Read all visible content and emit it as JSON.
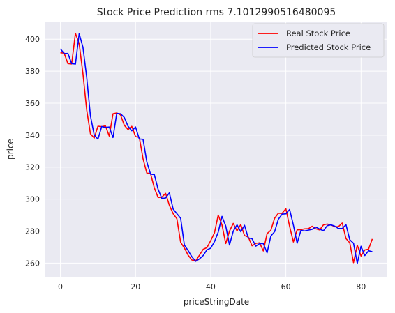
{
  "chart_data": {
    "type": "line",
    "title": "Stock Price Prediction  rms 7.1012990516480095",
    "xlabel": "priceStringDate",
    "ylabel": "price",
    "xlim": [
      -4,
      87
    ],
    "ylim": [
      251,
      411
    ],
    "xticks": [
      0,
      20,
      40,
      60,
      80
    ],
    "yticks": [
      260,
      280,
      300,
      320,
      340,
      360,
      380,
      400
    ],
    "grid": true,
    "legend_position": "top-right",
    "series": [
      {
        "name": "Real Stock Price",
        "color": "#ff0000",
        "values": [
          391.5,
          391.3,
          384.7,
          384.5,
          403.7,
          397.1,
          378.5,
          355.8,
          340.8,
          338.2,
          345.6,
          345.3,
          345.8,
          339.4,
          353.4,
          353.9,
          352.7,
          346.2,
          343.5,
          345.5,
          339.1,
          338.6,
          325.2,
          316.3,
          315.9,
          307.0,
          301.0,
          301.2,
          303.6,
          296.1,
          290.9,
          287.7,
          273.0,
          269.4,
          264.9,
          261.9,
          261.4,
          264.9,
          268.6,
          269.7,
          274.0,
          278.9,
          290.0,
          283.9,
          272.2,
          280.0,
          284.8,
          280.1,
          284.1,
          277.2,
          276.3,
          270.8,
          272.3,
          272.7,
          267.6,
          278.4,
          280.5,
          288.0,
          291.2,
          291.1,
          294.0,
          282.9,
          273.2,
          280.8,
          280.9,
          281.4,
          281.5,
          283.0,
          281.4,
          280.7,
          283.9,
          284.4,
          283.9,
          282.7,
          282.8,
          285.0,
          275.3,
          272.7,
          260.3,
          271.2,
          264.4,
          268.2,
          268.7,
          275.1
        ]
      },
      {
        "name": "Predicted Stock Price",
        "color": "#0000ff",
        "values": [
          394.0,
          391.0,
          391.1,
          384.7,
          384.4,
          403.4,
          395.0,
          376.2,
          352.0,
          340.1,
          337.5,
          345.4,
          344.8,
          345.1,
          338.5,
          353.6,
          353.4,
          351.1,
          345.6,
          342.7,
          345.1,
          337.6,
          337.4,
          323.3,
          315.6,
          315.3,
          306.2,
          300.4,
          300.7,
          303.9,
          293.8,
          290.9,
          288.0,
          271.2,
          267.8,
          263.9,
          261.1,
          262.6,
          264.7,
          268.3,
          269.3,
          273.4,
          279.3,
          289.2,
          283.2,
          271.3,
          279.9,
          283.9,
          279.6,
          283.6,
          275.7,
          275.2,
          270.6,
          272.1,
          272.2,
          266.4,
          276.9,
          279.6,
          287.4,
          290.6,
          290.8,
          293.5,
          283.8,
          272.4,
          280.4,
          280.1,
          280.6,
          281.1,
          282.5,
          281.2,
          280.2,
          283.4,
          283.9,
          283.1,
          281.6,
          281.6,
          284.0,
          274.6,
          272.4,
          259.8,
          270.5,
          264.7,
          267.7,
          267.1
        ]
      }
    ]
  }
}
